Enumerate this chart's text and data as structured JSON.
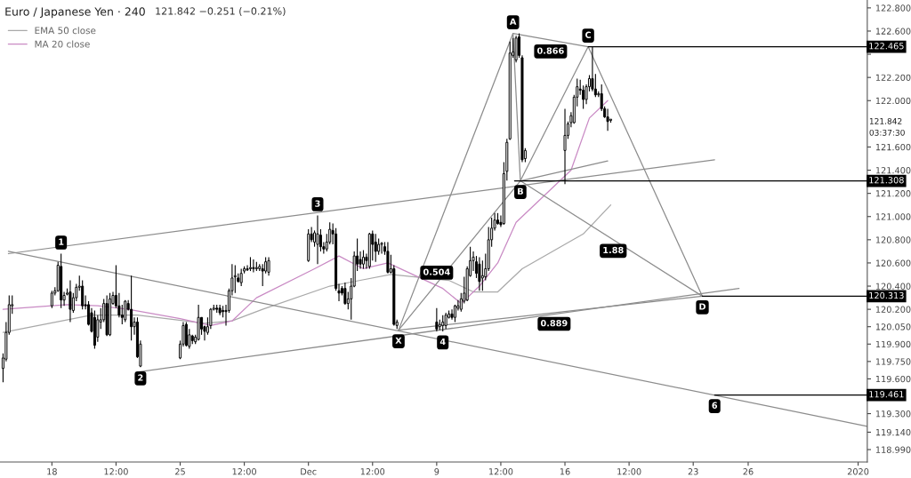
{
  "chart_data": {
    "type": "candlestick",
    "title": "Euro / Japanese Yen · 240",
    "subtitle": "121.842 −0.251 (−0.21%)",
    "color": "#000000",
    "x": [
      "2019-11-15T08:00",
      "2019-11-15T12:00",
      "2019-11-15T16:00",
      "2019-11-15T20:00",
      "2019-11-18T00:00",
      "2019-11-18T04:00",
      "2019-11-18T08:00",
      "2019-11-18T12:00",
      "2019-11-18T16:00",
      "2019-11-18T20:00",
      "2019-11-19T00:00",
      "2019-11-19T04:00",
      "2019-11-19T08:00",
      "2019-11-19T12:00",
      "2019-11-19T16:00",
      "2019-11-19T20:00",
      "2019-11-20T00:00",
      "2019-11-20T04:00",
      "2019-11-20T08:00",
      "2019-11-20T12:00",
      "2019-11-20T16:00",
      "2019-11-20T20:00",
      "2019-11-21T00:00",
      "2019-11-21T04:00",
      "2019-11-21T08:00",
      "2019-11-21T12:00",
      "2019-11-21T16:00",
      "2019-11-21T20:00",
      "2019-11-22T00:00",
      "2019-11-22T04:00",
      "2019-11-22T08:00",
      "2019-11-22T12:00",
      "2019-11-22T16:00",
      "2019-11-22T20:00",
      "2019-11-25T00:00",
      "2019-11-25T04:00",
      "2019-11-25T08:00",
      "2019-11-25T12:00",
      "2019-11-25T16:00",
      "2019-11-25T20:00",
      "2019-11-26T00:00",
      "2019-11-26T04:00",
      "2019-11-26T08:00",
      "2019-11-26T12:00",
      "2019-11-26T16:00",
      "2019-11-26T20:00",
      "2019-11-27T00:00",
      "2019-11-27T04:00",
      "2019-11-27T08:00",
      "2019-11-27T12:00",
      "2019-11-27T16:00",
      "2019-11-27T20:00",
      "2019-11-28T00:00",
      "2019-11-28T04:00",
      "2019-11-28T08:00",
      "2019-11-28T12:00",
      "2019-11-28T16:00",
      "2019-11-28T20:00",
      "2019-11-29T00:00",
      "2019-11-29T04:00",
      "2019-11-29T08:00",
      "2019-11-29T12:00",
      "2019-11-29T16:00",
      "2019-11-29T20:00",
      "2019-12-02T00:00",
      "2019-12-02T04:00",
      "2019-12-02T08:00",
      "2019-12-02T12:00",
      "2019-12-02T16:00",
      "2019-12-02T20:00",
      "2019-12-03T00:00",
      "2019-12-03T04:00",
      "2019-12-03T08:00",
      "2019-12-03T12:00",
      "2019-12-03T16:00",
      "2019-12-03T20:00",
      "2019-12-04T00:00",
      "2019-12-04T04:00",
      "2019-12-04T08:00",
      "2019-12-04T12:00",
      "2019-12-04T16:00",
      "2019-12-04T20:00",
      "2019-12-05T00:00",
      "2019-12-05T04:00",
      "2019-12-05T08:00",
      "2019-12-05T12:00",
      "2019-12-05T16:00",
      "2019-12-05T20:00",
      "2019-12-06T00:00",
      "2019-12-06T04:00",
      "2019-12-06T08:00",
      "2019-12-06T12:00",
      "2019-12-06T16:00",
      "2019-12-06T20:00",
      "2019-12-09T00:00",
      "2019-12-09T04:00",
      "2019-12-09T08:00",
      "2019-12-09T12:00",
      "2019-12-09T16:00",
      "2019-12-09T20:00",
      "2019-12-10T00:00",
      "2019-12-10T04:00",
      "2019-12-10T08:00",
      "2019-12-10T12:00",
      "2019-12-10T16:00",
      "2019-12-10T20:00",
      "2019-12-11T00:00",
      "2019-12-11T04:00",
      "2019-12-11T08:00",
      "2019-12-11T12:00",
      "2019-12-11T16:00",
      "2019-12-11T20:00",
      "2019-12-12T00:00",
      "2019-12-12T04:00",
      "2019-12-12T08:00",
      "2019-12-12T12:00",
      "2019-12-12T16:00",
      "2019-12-12T20:00",
      "2019-12-13T00:00",
      "2019-12-13T04:00",
      "2019-12-13T08:00",
      "2019-12-13T12:00",
      "2019-12-13T16:00",
      "2019-12-13T20:00",
      "2019-12-16T00:00",
      "2019-12-16T04:00",
      "2019-12-16T08:00",
      "2019-12-16T12:00",
      "2019-12-16T16:00",
      "2019-12-16T20:00",
      "2019-12-17T00:00",
      "2019-12-17T04:00",
      "2019-12-17T08:00",
      "2019-12-17T12:00",
      "2019-12-17T16:00",
      "2019-12-17T20:00",
      "2019-12-18T00:00",
      "2019-12-18T04:00",
      "2019-12-18T08:00",
      "2019-12-18T12:00"
    ],
    "ohlc": [
      [
        119.69,
        119.82,
        119.57,
        119.78
      ],
      [
        119.77,
        120.09,
        119.75,
        120.0
      ],
      [
        120.0,
        120.32,
        119.98,
        120.24
      ],
      [
        120.23,
        120.32,
        120.16,
        120.24
      ],
      [
        120.23,
        120.36,
        120.21,
        120.34
      ],
      [
        120.34,
        120.39,
        120.32,
        120.36
      ],
      [
        120.36,
        120.61,
        120.35,
        120.58
      ],
      [
        120.57,
        120.68,
        120.21,
        120.28
      ],
      [
        120.28,
        120.35,
        120.23,
        120.32
      ],
      [
        120.33,
        120.38,
        120.32,
        120.34
      ],
      [
        120.35,
        120.45,
        120.09,
        120.2
      ],
      [
        120.19,
        120.34,
        120.17,
        120.3
      ],
      [
        120.3,
        120.42,
        120.27,
        120.39
      ],
      [
        120.39,
        120.49,
        120.36,
        120.4
      ],
      [
        120.4,
        120.45,
        120.2,
        120.23
      ],
      [
        120.24,
        120.32,
        120.2,
        120.23
      ],
      [
        120.24,
        120.27,
        120.06,
        120.07
      ],
      [
        120.17,
        120.21,
        120.0,
        120.01
      ],
      [
        120.13,
        120.19,
        119.86,
        119.89
      ],
      [
        119.96,
        120.15,
        119.92,
        120.11
      ],
      [
        120.09,
        120.21,
        120.03,
        120.11
      ],
      [
        120.11,
        120.29,
        120.09,
        120.25
      ],
      [
        120.25,
        120.32,
        119.97,
        119.98
      ],
      [
        119.98,
        120.34,
        119.97,
        120.29
      ],
      [
        120.25,
        120.35,
        120.24,
        120.32
      ],
      [
        120.32,
        120.58,
        120.21,
        120.23
      ],
      [
        120.23,
        120.34,
        120.13,
        120.15
      ],
      [
        120.15,
        120.24,
        120.07,
        120.13
      ],
      [
        120.11,
        120.28,
        120.09,
        120.27
      ],
      [
        120.25,
        120.28,
        120.19,
        120.2
      ],
      [
        120.2,
        120.49,
        119.93,
        120.05
      ],
      [
        120.05,
        120.13,
        119.98,
        120.09
      ],
      [
        120.09,
        120.13,
        119.78,
        119.79
      ],
      [
        119.71,
        119.93,
        119.7,
        119.9
      ],
      [
        119.78,
        119.93,
        119.77,
        119.9
      ],
      [
        119.9,
        120.09,
        119.88,
        120.06
      ],
      [
        120.07,
        120.09,
        119.88,
        119.89
      ],
      [
        119.88,
        120.03,
        119.86,
        119.98
      ],
      [
        119.97,
        119.98,
        119.9,
        119.93
      ],
      [
        119.92,
        119.98,
        119.9,
        119.96
      ],
      [
        119.94,
        120.24,
        119.93,
        120.13
      ],
      [
        120.13,
        120.13,
        119.98,
        120.03
      ],
      [
        120.05,
        120.06,
        119.93,
        120.01
      ],
      [
        120.0,
        120.13,
        119.98,
        120.05
      ],
      [
        120.06,
        120.21,
        120.03,
        120.2
      ],
      [
        120.2,
        120.24,
        120.19,
        120.21
      ],
      [
        120.21,
        120.24,
        120.17,
        120.2
      ],
      [
        120.21,
        120.24,
        120.15,
        120.17
      ],
      [
        120.19,
        120.23,
        120.13,
        120.18
      ],
      [
        120.19,
        120.24,
        120.06,
        120.18
      ],
      [
        120.19,
        120.38,
        120.17,
        120.36
      ],
      [
        120.36,
        120.59,
        120.32,
        120.47
      ],
      [
        120.48,
        120.58,
        120.34,
        120.49
      ],
      [
        120.47,
        120.51,
        120.43,
        120.44
      ],
      [
        120.43,
        120.55,
        120.4,
        120.51
      ],
      [
        120.53,
        120.57,
        120.51,
        120.55
      ],
      [
        120.55,
        120.58,
        120.53,
        120.54
      ],
      [
        120.55,
        120.65,
        120.53,
        120.56
      ],
      [
        120.56,
        120.63,
        120.52,
        120.55
      ],
      [
        120.55,
        120.61,
        120.53,
        120.56
      ],
      [
        120.55,
        120.59,
        120.53,
        120.57
      ],
      [
        120.55,
        120.59,
        120.4,
        120.53
      ],
      [
        120.53,
        120.65,
        120.51,
        120.61
      ],
      [
        120.52,
        120.65,
        120.49,
        120.62
      ],
      [
        120.62,
        120.89,
        120.61,
        120.85
      ],
      [
        120.85,
        120.91,
        120.78,
        120.8
      ],
      [
        120.78,
        120.88,
        120.74,
        120.86
      ],
      [
        120.76,
        121.01,
        120.59,
        120.85
      ],
      [
        120.84,
        120.89,
        120.7,
        120.74
      ],
      [
        120.74,
        120.78,
        120.68,
        120.72
      ],
      [
        120.72,
        120.85,
        120.7,
        120.78
      ],
      [
        120.78,
        120.95,
        120.76,
        120.89
      ],
      [
        120.88,
        120.94,
        120.76,
        120.85
      ],
      [
        120.85,
        120.9,
        120.36,
        120.38
      ],
      [
        120.36,
        120.42,
        120.27,
        120.34
      ],
      [
        120.38,
        120.4,
        120.32,
        120.34
      ],
      [
        120.38,
        120.43,
        120.24,
        120.25
      ],
      [
        120.25,
        120.35,
        120.2,
        120.29
      ],
      [
        120.29,
        120.47,
        120.11,
        120.4
      ],
      [
        120.4,
        120.7,
        120.39,
        120.66
      ],
      [
        120.66,
        120.81,
        120.53,
        120.59
      ],
      [
        120.63,
        120.7,
        120.55,
        120.59
      ],
      [
        120.59,
        120.71,
        120.55,
        120.65
      ],
      [
        120.65,
        120.68,
        120.55,
        120.62
      ],
      [
        120.57,
        120.86,
        120.55,
        120.85
      ],
      [
        120.85,
        120.88,
        120.62,
        120.76
      ],
      [
        120.78,
        120.85,
        120.61,
        120.7
      ],
      [
        120.7,
        120.81,
        120.67,
        120.76
      ],
      [
        120.76,
        120.78,
        120.68,
        120.77
      ],
      [
        120.74,
        120.78,
        120.67,
        120.7
      ],
      [
        120.7,
        120.78,
        120.51,
        120.52
      ],
      [
        120.52,
        120.67,
        120.51,
        120.55
      ],
      [
        120.55,
        120.58,
        120.06,
        120.07
      ],
      [
        120.06,
        120.11,
        120.03,
        120.09
      ],
      [
        120.09,
        120.21,
        120.01,
        120.03
      ],
      [
        120.05,
        120.11,
        120.02,
        120.07
      ],
      [
        120.06,
        120.15,
        120.01,
        120.09
      ],
      [
        120.06,
        120.17,
        120.03,
        120.15
      ],
      [
        120.13,
        120.19,
        120.12,
        120.16
      ],
      [
        120.16,
        120.2,
        120.11,
        120.13
      ],
      [
        120.13,
        120.24,
        120.09,
        120.23
      ],
      [
        120.21,
        120.28,
        120.19,
        120.23
      ],
      [
        120.2,
        120.34,
        120.18,
        120.29
      ],
      [
        120.27,
        120.48,
        120.25,
        120.34
      ],
      [
        120.28,
        120.57,
        120.27,
        120.55
      ],
      [
        120.49,
        120.74,
        120.48,
        120.62
      ],
      [
        120.62,
        120.7,
        120.53,
        120.65
      ],
      [
        120.61,
        120.66,
        120.47,
        120.51
      ],
      [
        120.59,
        120.65,
        120.36,
        120.44
      ],
      [
        120.47,
        120.62,
        120.36,
        120.49
      ],
      [
        120.48,
        120.68,
        120.45,
        120.55
      ],
      [
        120.55,
        120.91,
        120.53,
        120.8
      ],
      [
        120.8,
        120.99,
        120.74,
        120.9
      ],
      [
        120.9,
        121.03,
        120.88,
        120.97
      ],
      [
        120.97,
        121.03,
        120.93,
        120.94
      ],
      [
        120.95,
        121.01,
        120.91,
        120.93
      ],
      [
        120.94,
        121.47,
        120.93,
        121.37
      ],
      [
        121.39,
        121.67,
        121.31,
        121.64
      ],
      [
        121.67,
        122.51,
        121.66,
        122.41
      ],
      [
        122.39,
        122.54,
        122.37,
        122.42
      ],
      [
        122.35,
        122.56,
        122.33,
        122.54
      ],
      [
        122.55,
        122.58,
        122.37,
        122.39
      ],
      [
        122.37,
        122.39,
        121.47,
        121.49
      ],
      [
        121.5,
        121.59,
        121.47,
        121.57
      ],
      [
        121.57,
        121.93,
        121.28,
        121.7
      ],
      [
        121.7,
        121.82,
        121.67,
        121.8
      ],
      [
        121.81,
        121.9,
        121.77,
        121.87
      ],
      [
        121.81,
        122.05,
        121.8,
        122.03
      ],
      [
        122.03,
        122.19,
        121.95,
        122.12
      ],
      [
        122.1,
        122.18,
        122.05,
        122.09
      ],
      [
        122.09,
        122.13,
        121.93,
        122.01
      ],
      [
        122.01,
        122.14,
        121.97,
        122.12
      ],
      [
        122.12,
        122.22,
        122.08,
        122.19
      ],
      [
        122.19,
        122.47,
        122.08,
        122.1
      ],
      [
        122.1,
        122.23,
        122.03,
        122.05
      ],
      [
        122.05,
        122.08,
        122.03,
        122.06
      ],
      [
        122.06,
        122.14,
        121.91,
        121.93
      ],
      [
        121.93,
        121.95,
        121.85,
        121.86
      ],
      [
        121.86,
        121.93,
        121.74,
        121.82
      ],
      [
        121.83,
        121.84,
        121.81,
        121.84
      ]
    ],
    "series": [
      {
        "name": "EMA 50 close",
        "type": "line",
        "color": "#a9a9a9",
        "x": [
          "2019-11-15T08:00",
          "2019-11-20T04:00",
          "2019-11-22T16:00",
          "2019-11-26T08:00",
          "2019-11-27T20:00",
          "2019-11-29T12:00",
          "2019-12-03T04:00",
          "2019-12-04T20:00",
          "2019-12-06T12:00",
          "2019-12-09T16:00",
          "2019-12-11T00:00",
          "2019-12-12T08:00",
          "2019-12-13T16:00",
          "2019-12-17T00:00",
          "2019-12-18T12:00"
        ],
        "values": [
          120.0,
          120.15,
          120.15,
          120.08,
          120.1,
          120.2,
          120.4,
          120.45,
          120.5,
          120.45,
          120.35,
          120.35,
          120.55,
          120.85,
          121.1
        ]
      },
      {
        "name": "MA 20 close",
        "type": "line",
        "color": "#c98ac4",
        "x": [
          "2019-11-15T08:00",
          "2019-11-18T20:00",
          "2019-11-20T12:00",
          "2019-11-22T04:00",
          "2019-11-25T00:00",
          "2019-11-26T16:00",
          "2019-11-27T20:00",
          "2019-11-29T04:00",
          "2019-12-02T08:00",
          "2019-12-03T16:00",
          "2019-12-05T00:00",
          "2019-12-06T08:00",
          "2019-12-09T08:00",
          "2019-12-10T08:00",
          "2019-12-11T08:00",
          "2019-12-12T08:00",
          "2019-12-13T08:00",
          "2019-12-16T08:00",
          "2019-12-17T08:00",
          "2019-12-18T08:00"
        ],
        "values": [
          120.2,
          120.24,
          120.23,
          120.2,
          120.12,
          120.06,
          120.1,
          120.3,
          120.55,
          120.66,
          120.55,
          120.6,
          120.38,
          120.25,
          120.4,
          120.6,
          120.95,
          121.4,
          121.85,
          122.0
        ]
      },
      {
        "type": "line",
        "color": "#8c8c8c",
        "x": [
          "2019-12-06T22:00",
          "2019-12-13T04:00",
          "2019-12-13T13:36",
          "2019-12-17T06:24",
          "2019-12-23T12:00"
        ],
        "values": [
          120.02,
          122.58,
          121.308,
          122.465,
          120.313
        ]
      },
      {
        "type": "line",
        "color": "#8c8c8c",
        "x": [
          "2019-12-06T22:00",
          "2019-12-13T13:36"
        ],
        "values": [
          120.02,
          121.308
        ]
      },
      {
        "type": "line",
        "color": "#8c8c8c",
        "x": [
          "2019-12-13T04:00",
          "2019-12-17T06:24"
        ],
        "values": [
          122.58,
          122.465
        ]
      },
      {
        "type": "line",
        "color": "#8c8c8c",
        "x": [
          "2019-12-13T13:36",
          "2019-12-23T12:00"
        ],
        "values": [
          121.308,
          120.313
        ]
      },
      {
        "type": "line",
        "color": "#8c8c8c",
        "x": [
          "2019-12-06T22:00",
          "2019-12-23T12:00"
        ],
        "values": [
          120.02,
          120.313
        ]
      },
      {
        "type": "line",
        "color": "#8c8c8c",
        "x": [
          "2019-12-13T13:36",
          "2019-12-18T08:00"
        ],
        "values": [
          121.308,
          121.48
        ]
      },
      {
        "type": "line",
        "color": "#8c8c8c",
        "x": [
          "2019-11-15T15:00",
          "2019-12-24T04:00"
        ],
        "values": [
          120.68,
          121.49
        ]
      },
      {
        "type": "line",
        "color": "#8c8c8c",
        "x": [
          "2019-11-22T17:00",
          "2019-12-25T12:00"
        ],
        "values": [
          119.66,
          120.38
        ]
      },
      {
        "type": "line",
        "color": "#8c8c8c",
        "x": [
          "2019-11-15T15:00",
          "2020-01-01T12:00"
        ],
        "values": [
          120.7,
          119.19
        ]
      },
      {
        "type": "line",
        "color": "#000000",
        "x": [
          "2019-12-17T06:24",
          "2020-01-01T12:00"
        ],
        "values": [
          122.465,
          122.465
        ]
      },
      {
        "type": "line",
        "color": "#000000",
        "x": [
          "2019-12-13T06:00",
          "2020-01-01T12:00"
        ],
        "values": [
          121.308,
          121.308
        ]
      },
      {
        "type": "line",
        "color": "#000000",
        "x": [
          "2019-12-23T12:00",
          "2020-01-01T12:00"
        ],
        "values": [
          120.313,
          120.313
        ]
      },
      {
        "type": "line",
        "color": "#000000",
        "x": [
          "2019-12-24T04:00",
          "2020-01-01T12:00"
        ],
        "values": [
          119.461,
          119.461
        ]
      }
    ],
    "annotations": [
      {
        "text": "A",
        "x": "2019-12-13T04:00",
        "y": 122.58
      },
      {
        "text": "C",
        "x": "2019-12-17T06:24",
        "y": 122.465
      },
      {
        "text": "B",
        "x": "2019-12-13T13:36",
        "y": 121.308
      },
      {
        "text": "D",
        "x": "2019-12-23T12:00",
        "y": 120.313
      },
      {
        "text": "X",
        "x": "2019-12-06T22:00",
        "y": 120.02
      },
      {
        "text": "0.866",
        "x": "2019-12-15T05:12",
        "y": 122.52
      },
      {
        "text": "0.504",
        "x": "2019-12-09T00:00",
        "y": 120.42
      },
      {
        "text": "1.88",
        "x": "2019-12-18T15:12",
        "y": 120.8
      },
      {
        "text": "0.889",
        "x": "2019-12-15T09:48",
        "y": 120.17
      },
      {
        "text": "1",
        "x": "2019-11-18T12:00",
        "y": 120.68
      },
      {
        "text": "2",
        "x": "2019-11-22T20:00",
        "y": 119.7
      },
      {
        "text": "3",
        "x": "2019-12-02T12:00",
        "y": 121.01
      },
      {
        "text": "4",
        "x": "2019-12-09T08:00",
        "y": 120.01
      },
      {
        "text": "6",
        "x": "2019-12-24T04:00",
        "y": 119.461
      },
      {
        "text": "122.465",
        "x": "2020-01-01T12:00",
        "y": 122.465
      },
      {
        "text": "121.308",
        "x": "2020-01-01T12:00",
        "y": 121.308
      },
      {
        "text": "120.313",
        "x": "2020-01-01T12:00",
        "y": 120.313
      },
      {
        "text": "119.461",
        "x": "2020-01-01T12:00",
        "y": 119.461
      },
      "121.842",
      "03:37:30"
    ],
    "xlim": [
      "2019-11-15T04:00",
      "2020-01-01T12:00"
    ],
    "xticks": [
      {
        "value": "2019-11-18",
        "label": "18"
      },
      {
        "value": "2019-11-21T12:00",
        "label": "12:00"
      },
      {
        "value": "2019-11-25",
        "label": "25"
      },
      {
        "value": "2019-11-28T12:00",
        "label": "12:00"
      },
      {
        "value": "2019-12-02",
        "label": "Dec"
      },
      {
        "value": "2019-12-05T12:00",
        "label": "12:00"
      },
      {
        "value": "2019-12-09",
        "label": "9"
      },
      {
        "value": "2019-12-12T12:00",
        "label": "12:00"
      },
      {
        "value": "2019-12-16",
        "label": "16"
      },
      {
        "value": "2019-12-19T12:00",
        "label": "12:00"
      },
      {
        "value": "2019-12-23",
        "label": "23"
      },
      {
        "value": "2019-12-26",
        "label": "26"
      },
      {
        "value": "2020-01-01",
        "label": "2020"
      }
    ],
    "ylim": [
      118.883,
      122.868
    ],
    "yticks": [
      {
        "value": 122.8,
        "label": "122.800"
      },
      {
        "value": 122.6,
        "label": "122.600"
      },
      {
        "value": 122.4,
        "label": null
      },
      {
        "value": 122.2,
        "label": "122.200"
      },
      {
        "value": 122.0,
        "label": "122.000"
      },
      {
        "value": 121.6,
        "label": "121.600"
      },
      {
        "value": 121.4,
        "label": "121.400"
      },
      {
        "value": 121.2,
        "label": "121.200"
      },
      {
        "value": 121.0,
        "label": "121.000"
      },
      {
        "value": 120.8,
        "label": "120.800"
      },
      {
        "value": 120.6,
        "label": "120.600"
      },
      {
        "value": 120.4,
        "label": "120.400"
      },
      {
        "value": 120.2,
        "label": "120.200"
      },
      {
        "value": 120.05,
        "label": "120.050"
      },
      {
        "value": 119.9,
        "label": "119.900"
      },
      {
        "value": 119.75,
        "label": "119.750"
      },
      {
        "value": 119.6,
        "label": "119.600"
      },
      {
        "value": 119.3,
        "label": "119.300"
      },
      {
        "value": 119.14,
        "label": "119.140"
      },
      {
        "value": 118.99,
        "label": "118.990"
      }
    ],
    "grid": false,
    "legend": "top left"
  }
}
